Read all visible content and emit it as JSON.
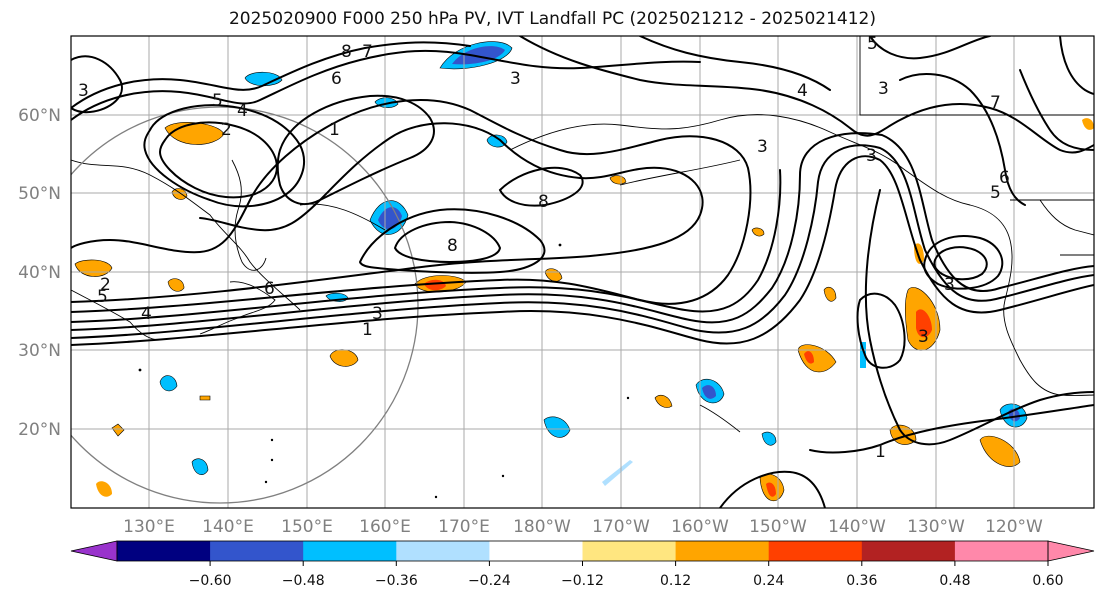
{
  "title": "2025020900 F000 250 hPa PV, IVT Landfall PC (2025021212 - 2025021412)",
  "lat_labels": [
    "60°N",
    "50°N",
    "40°N",
    "30°N",
    "20°N"
  ],
  "lon_labels": [
    "130°E",
    "140°E",
    "150°E",
    "160°E",
    "170°E",
    "180°W",
    "170°W",
    "160°W",
    "150°W",
    "140°W",
    "130°W",
    "120°W"
  ],
  "colorbar": {
    "tick_labels": [
      "−0.60",
      "−0.48",
      "−0.36",
      "−0.24",
      "−0.12",
      "0.12",
      "0.24",
      "0.36",
      "0.48",
      "0.60"
    ],
    "colors": [
      "#9933cc",
      "#000080",
      "#3355cc",
      "#00bfff",
      "#b0e0ff",
      "#ffffff",
      "#ffe680",
      "#ffa500",
      "#ff4000",
      "#b22222",
      "#ff88aa",
      "#ff88aa"
    ],
    "levels": [
      -0.6,
      -0.48,
      -0.36,
      -0.24,
      -0.12,
      0.12,
      0.24,
      0.36,
      0.48,
      0.6
    ]
  },
  "contour_labels": [
    "8",
    "7",
    "6",
    "5",
    "4",
    "2",
    "1",
    "8",
    "8",
    "6",
    "5",
    "4",
    "3",
    "1",
    "3",
    "4",
    "3",
    "3",
    "3",
    "6",
    "5",
    "5",
    "7",
    "3",
    "1",
    "3",
    "2",
    "3"
  ],
  "colors": {
    "positive": "#ffa500",
    "negative": "#00bfff",
    "grid": "#aaaaaa",
    "contour": "#000000"
  }
}
